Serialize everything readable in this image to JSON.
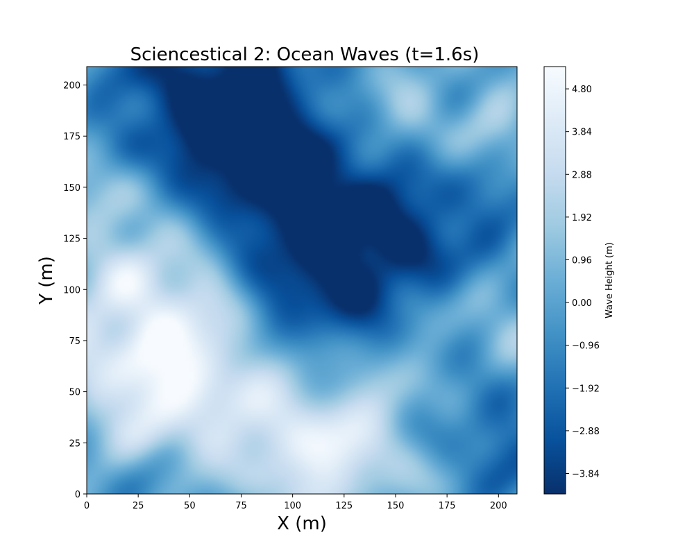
{
  "chart_data": {
    "type": "heatmap",
    "title": "Sciencestical 2:  Ocean Waves (t=1.6s)",
    "xlabel": "X (m)",
    "ylabel": "Y (m)",
    "xlim": [
      0,
      209
    ],
    "ylim": [
      0,
      209
    ],
    "x_ticks": [
      0,
      25,
      50,
      75,
      100,
      125,
      150,
      175,
      200
    ],
    "y_ticks": [
      0,
      25,
      50,
      75,
      100,
      125,
      150,
      175,
      200
    ],
    "colormap": "Blues_r",
    "colorbar": {
      "label": "Wave Height (m)",
      "range": [
        -4.3,
        5.3
      ],
      "tick_values": [
        -3.84,
        -2.88,
        -1.92,
        -0.96,
        0.0,
        0.96,
        1.92,
        2.88,
        3.84,
        4.8
      ],
      "tick_labels": [
        "−3.84",
        "−2.88",
        "−1.92",
        "−0.96",
        "0.00",
        "0.96",
        "1.92",
        "2.88",
        "3.84",
        "4.80"
      ]
    },
    "field_features": [
      {
        "x": 108,
        "y": 18,
        "height": 4.5
      },
      {
        "x": 38,
        "y": 78,
        "height": 4.0
      },
      {
        "x": 62,
        "y": 65,
        "height": 3.2
      },
      {
        "x": 30,
        "y": 48,
        "height": 3.0
      },
      {
        "x": 20,
        "y": 100,
        "height": 2.8
      },
      {
        "x": 170,
        "y": 180,
        "height": 2.4
      },
      {
        "x": 15,
        "y": 155,
        "height": 1.8
      },
      {
        "x": 200,
        "y": 95,
        "height": 2.0
      },
      {
        "x": 140,
        "y": 40,
        "height": 2.5
      },
      {
        "x": 70,
        "y": 200,
        "height": -3.9
      },
      {
        "x": 68,
        "y": 170,
        "height": -3.3
      },
      {
        "x": 138,
        "y": 117,
        "height": -4.0
      },
      {
        "x": 112,
        "y": 130,
        "height": -3.2
      },
      {
        "x": 45,
        "y": 180,
        "height": -2.4
      },
      {
        "x": 150,
        "y": 145,
        "height": -2.6
      },
      {
        "x": 205,
        "y": 130,
        "height": -2.0
      },
      {
        "x": 190,
        "y": 30,
        "height": -1.6
      },
      {
        "x": 100,
        "y": 100,
        "height": -2.2
      }
    ],
    "baseline_height": -0.5
  }
}
